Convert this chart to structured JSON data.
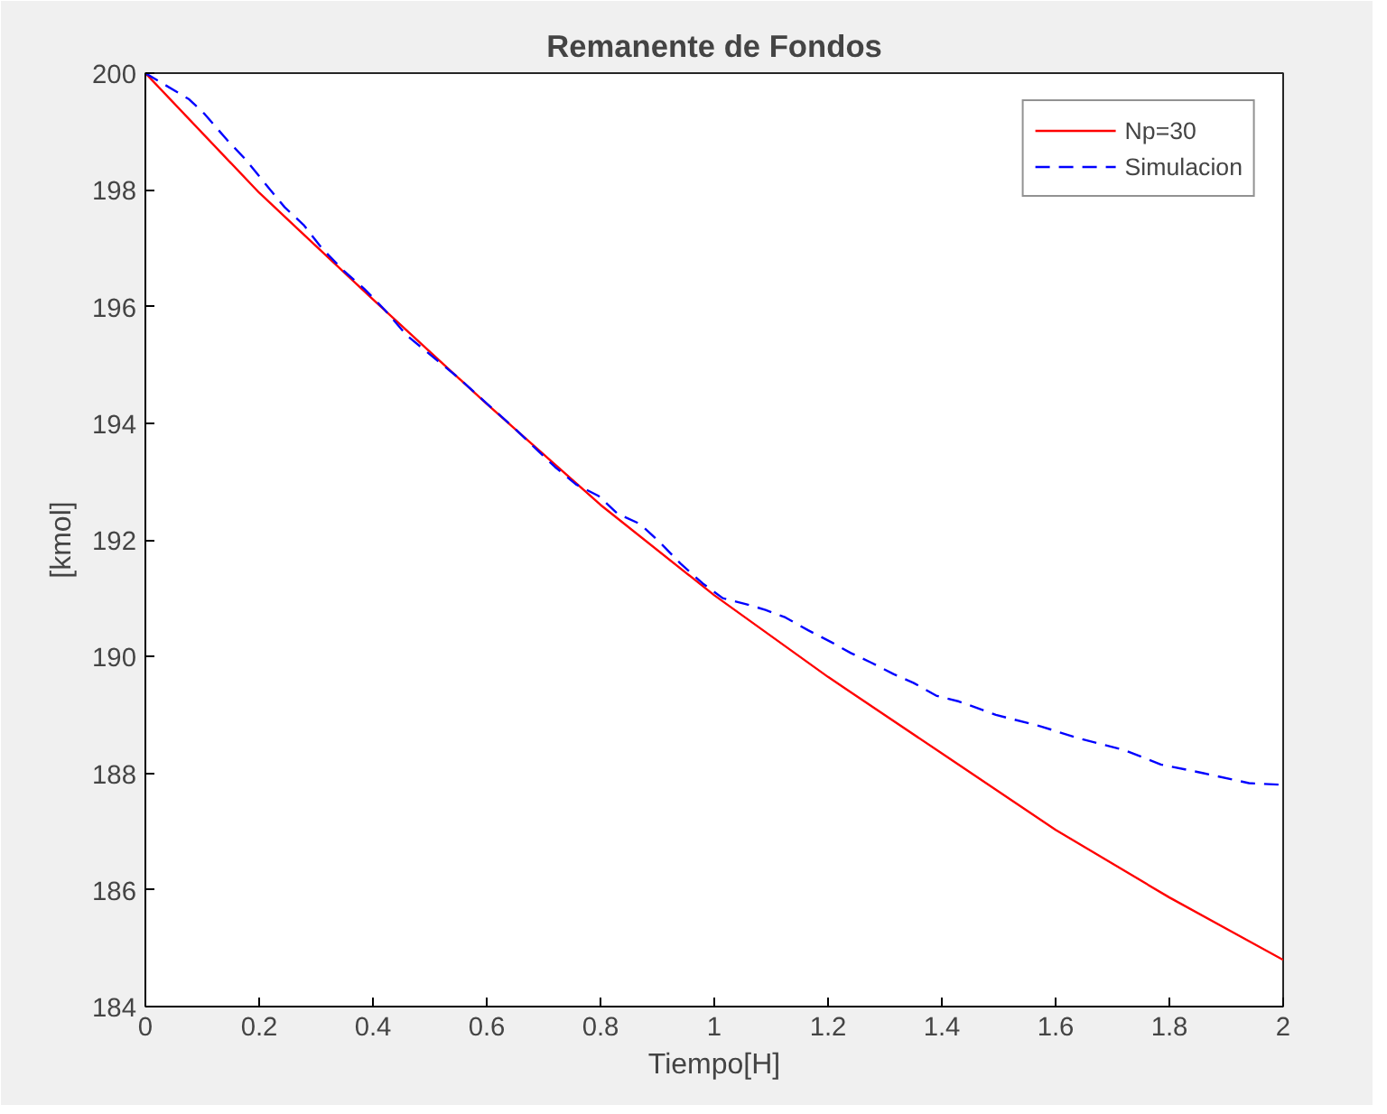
{
  "chart_data": {
    "type": "line",
    "title": "Remanente de Fondos",
    "xlabel": "Tiempo[H]",
    "ylabel": "[kmol]",
    "xlim": [
      0,
      2
    ],
    "ylim": [
      184,
      200
    ],
    "xticks": [
      0,
      0.2,
      0.4,
      0.6,
      0.8,
      1,
      1.2,
      1.4,
      1.6,
      1.8,
      2
    ],
    "yticks": [
      184,
      186,
      188,
      190,
      192,
      194,
      196,
      198,
      200
    ],
    "grid": false,
    "legend": "top right",
    "series": [
      {
        "name": "Np=30",
        "color": "#ff0000",
        "line_style": "solid",
        "x": [
          0,
          0.2,
          0.4,
          0.6,
          0.8,
          1,
          1.2,
          1.4,
          1.6,
          1.8,
          2
        ],
        "values": [
          200,
          197.95,
          196.12,
          194.33,
          192.6,
          191.05,
          189.65,
          188.34,
          187.03,
          185.87,
          184.8
        ]
      },
      {
        "name": "Simulacion",
        "color": "#0000ff",
        "line_style": "dashed",
        "x": [
          0,
          0.077,
          0.104,
          0.144,
          0.178,
          0.211,
          0.245,
          0.278,
          0.31,
          0.35,
          0.385,
          0.42,
          0.46,
          0.55,
          0.65,
          0.72,
          0.757,
          0.797,
          0.83,
          0.87,
          0.905,
          0.94,
          0.98,
          1.015,
          1.055,
          1.09,
          1.125,
          1.165,
          1.205,
          1.24,
          1.275,
          1.315,
          1.35,
          1.39,
          1.43,
          1.495,
          1.575,
          1.64,
          1.72,
          1.785,
          1.86,
          1.94,
          2
        ],
        "values": [
          200,
          199.55,
          199.3,
          198.85,
          198.5,
          198.1,
          197.7,
          197.4,
          197.0,
          196.6,
          196.3,
          195.95,
          195.5,
          194.78,
          193.9,
          193.25,
          192.95,
          192.75,
          192.45,
          192.27,
          191.95,
          191.6,
          191.25,
          191.0,
          190.9,
          190.8,
          190.67,
          190.45,
          190.25,
          190.06,
          189.9,
          189.7,
          189.55,
          189.33,
          189.23,
          189.0,
          188.8,
          188.6,
          188.4,
          188.15,
          188.0,
          187.83,
          187.8
        ]
      }
    ]
  }
}
